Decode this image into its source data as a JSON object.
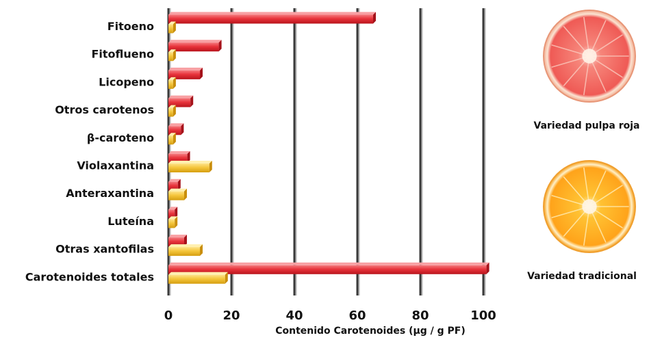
{
  "chart_data": {
    "type": "bar",
    "orientation": "horizontal",
    "categories": [
      "Fitoeno",
      "Fitoflueno",
      "Licopeno",
      "Otros carotenos",
      "β-caroteno",
      "Violaxantina",
      "Anteraxantina",
      "Luteína",
      "Otras xantofilas",
      "Carotenoides totales"
    ],
    "series": [
      {
        "color": "#e8333b",
        "values": [
          65,
          16,
          10,
          7,
          4,
          6,
          3,
          2,
          5,
          101
        ]
      },
      {
        "color": "#f5c63c",
        "values": [
          1.5,
          1.5,
          1.5,
          1.5,
          1.5,
          13,
          5,
          2,
          10,
          18
        ]
      }
    ],
    "xlabel": "Contenido Carotenoides (μg / g PF)",
    "xlim": [
      0,
      100
    ],
    "xticks": [
      "0",
      "20",
      "40",
      "60",
      "80",
      "100"
    ],
    "grid": "vertical",
    "legend": {
      "placement": "right",
      "items": [
        {
          "label": "Variedad pulpa roja",
          "icon": "red-grapefruit-slice-icon",
          "color": "#e8333b"
        },
        {
          "label": "Variedad  tradicional",
          "icon": "orange-slice-icon",
          "color": "#f5c63c"
        }
      ]
    }
  }
}
